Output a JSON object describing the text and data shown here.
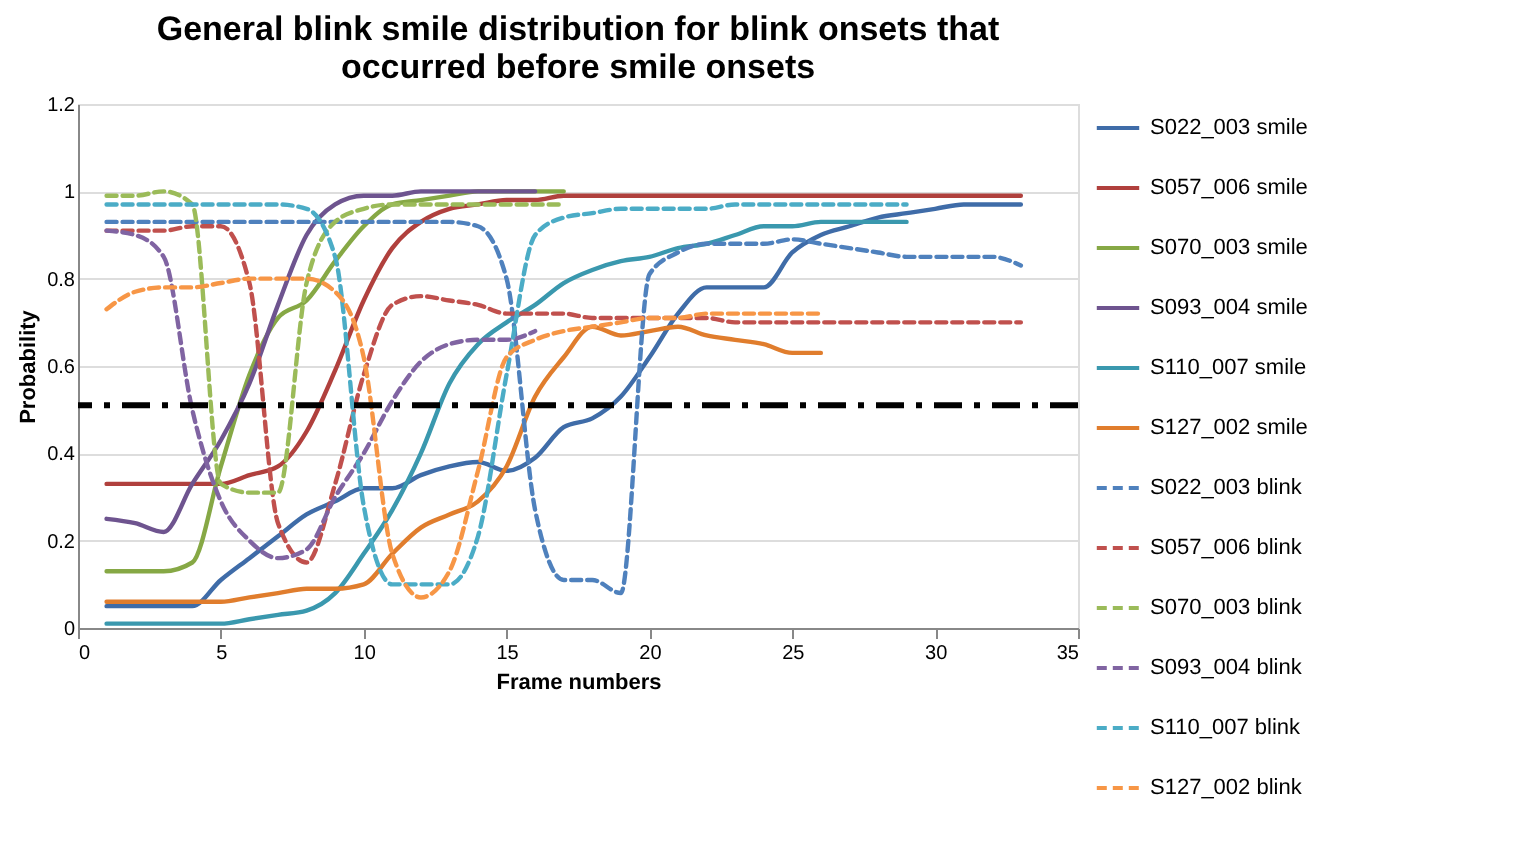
{
  "chart_data": {
    "type": "line",
    "title": "General blink smile distribution for blink onsets that occurred before smile onsets",
    "xlabel": "Frame numbers",
    "ylabel": "Probability",
    "x": [
      1,
      2,
      3,
      4,
      5,
      6,
      7,
      8,
      9,
      10,
      11,
      12,
      13,
      14,
      15,
      16,
      17,
      18,
      19,
      20,
      21,
      22,
      23,
      24,
      25,
      26,
      27,
      28,
      29,
      30,
      31,
      32,
      33
    ],
    "series": [
      {
        "name": "S022_003 smile",
        "color": "#3f6ca8",
        "line_style": "solid",
        "values": [
          0.05,
          0.05,
          0.05,
          0.05,
          0.11,
          0.16,
          0.21,
          0.26,
          0.29,
          0.32,
          0.32,
          0.35,
          0.37,
          0.38,
          0.36,
          0.39,
          0.46,
          0.48,
          0.53,
          0.62,
          0.72,
          0.78,
          0.78,
          0.78,
          0.86,
          0.9,
          0.92,
          0.94,
          0.95,
          0.96,
          0.97,
          0.97,
          0.97
        ]
      },
      {
        "name": "S057_006 smile",
        "color": "#b0403d",
        "line_style": "solid",
        "values": [
          0.33,
          0.33,
          0.33,
          0.33,
          0.33,
          0.35,
          0.37,
          0.45,
          0.59,
          0.75,
          0.87,
          0.93,
          0.96,
          0.97,
          0.98,
          0.98,
          0.99,
          0.99,
          0.99,
          0.99,
          0.99,
          0.99,
          0.99,
          0.99,
          0.99,
          0.99,
          0.99,
          0.99,
          0.99,
          0.99,
          0.99,
          0.99,
          0.99
        ]
      },
      {
        "name": "S070_003 smile",
        "color": "#86a845",
        "line_style": "solid",
        "values": [
          0.13,
          0.13,
          0.13,
          0.15,
          0.37,
          0.58,
          0.71,
          0.75,
          0.84,
          0.92,
          0.97,
          0.98,
          0.99,
          1,
          1,
          1,
          1,
          null,
          null,
          null,
          null,
          null,
          null,
          null,
          null,
          null,
          null,
          null,
          null,
          null,
          null,
          null,
          null
        ]
      },
      {
        "name": "S093_004 smile",
        "color": "#6e548f",
        "line_style": "solid",
        "values": [
          0.25,
          0.24,
          0.22,
          0.33,
          0.43,
          0.56,
          0.74,
          0.9,
          0.97,
          0.99,
          0.99,
          1,
          1,
          1,
          1,
          1,
          null,
          null,
          null,
          null,
          null,
          null,
          null,
          null,
          null,
          null,
          null,
          null,
          null,
          null,
          null,
          null,
          null
        ]
      },
      {
        "name": "S110_007 smile",
        "color": "#3a98ae",
        "line_style": "solid",
        "values": [
          0.01,
          0.01,
          0.01,
          0.01,
          0.01,
          0.02,
          0.03,
          0.04,
          0.08,
          0.17,
          0.27,
          0.4,
          0.56,
          0.65,
          0.7,
          0.74,
          0.79,
          0.82,
          0.84,
          0.85,
          0.87,
          0.88,
          0.9,
          0.92,
          0.92,
          0.93,
          0.93,
          0.93,
          0.93,
          null,
          null,
          null,
          null
        ]
      },
      {
        "name": "S127_002 smile",
        "color": "#e07d2d",
        "line_style": "solid",
        "values": [
          0.06,
          0.06,
          0.06,
          0.06,
          0.06,
          0.07,
          0.08,
          0.09,
          0.09,
          0.1,
          0.17,
          0.23,
          0.26,
          0.29,
          0.37,
          0.53,
          0.62,
          0.69,
          0.67,
          0.68,
          0.69,
          0.67,
          0.66,
          0.65,
          0.63,
          0.63,
          null,
          null,
          null,
          null,
          null,
          null,
          null
        ]
      },
      {
        "name": "S022_003 blink",
        "color": "#4f81bd",
        "line_style": "dashed",
        "values": [
          0.93,
          0.93,
          0.93,
          0.93,
          0.93,
          0.93,
          0.93,
          0.93,
          0.93,
          0.93,
          0.93,
          0.93,
          0.93,
          0.92,
          0.8,
          0.27,
          0.11,
          0.11,
          0.08,
          0.81,
          0.86,
          0.88,
          0.88,
          0.88,
          0.89,
          0.88,
          0.87,
          0.86,
          0.85,
          0.85,
          0.85,
          0.85,
          0.83
        ]
      },
      {
        "name": "S057_006 blink",
        "color": "#c0504d",
        "line_style": "dashed",
        "values": [
          0.91,
          0.91,
          0.91,
          0.92,
          0.92,
          0.79,
          0.24,
          0.15,
          0.33,
          0.58,
          0.74,
          0.76,
          0.75,
          0.74,
          0.72,
          0.72,
          0.72,
          0.71,
          0.71,
          0.71,
          0.71,
          0.71,
          0.7,
          0.7,
          0.7,
          0.7,
          0.7,
          0.7,
          0.7,
          0.7,
          0.7,
          0.7,
          0.7
        ]
      },
      {
        "name": "S070_003 blink",
        "color": "#9bbb59",
        "line_style": "dashed",
        "values": [
          0.99,
          0.99,
          1,
          0.97,
          0.33,
          0.31,
          0.31,
          0.79,
          0.93,
          0.96,
          0.97,
          0.97,
          0.97,
          0.97,
          0.97,
          0.97,
          0.97,
          null,
          null,
          null,
          null,
          null,
          null,
          null,
          null,
          null,
          null,
          null,
          null,
          null,
          null,
          null,
          null
        ]
      },
      {
        "name": "S093_004 blink",
        "color": "#8064a2",
        "line_style": "dashed",
        "values": [
          0.91,
          0.9,
          0.85,
          0.5,
          0.29,
          0.2,
          0.16,
          0.18,
          0.3,
          0.4,
          0.52,
          0.61,
          0.65,
          0.66,
          0.66,
          0.68,
          null,
          null,
          null,
          null,
          null,
          null,
          null,
          null,
          null,
          null,
          null,
          null,
          null,
          null,
          null,
          null,
          null
        ]
      },
      {
        "name": "S110_007 blink",
        "color": "#4bacc6",
        "line_style": "dashed",
        "values": [
          0.97,
          0.97,
          0.97,
          0.97,
          0.97,
          0.97,
          0.97,
          0.96,
          0.85,
          0.28,
          0.1,
          0.1,
          0.1,
          0.21,
          0.58,
          0.9,
          0.94,
          0.95,
          0.96,
          0.96,
          0.96,
          0.96,
          0.97,
          0.97,
          0.97,
          0.97,
          0.97,
          0.97,
          0.97,
          null,
          null,
          null,
          null
        ]
      },
      {
        "name": "S127_002 blink",
        "color": "#f79646",
        "line_style": "dashed",
        "values": [
          0.73,
          0.77,
          0.78,
          0.78,
          0.79,
          0.8,
          0.8,
          0.8,
          0.77,
          0.62,
          0.17,
          0.07,
          0.13,
          0.36,
          0.62,
          0.66,
          0.68,
          0.69,
          0.7,
          0.71,
          0.71,
          0.72,
          0.72,
          0.72,
          0.72,
          0.72,
          null,
          null,
          null,
          null,
          null,
          null,
          null
        ]
      }
    ],
    "ref_lines": [
      {
        "axis": "y",
        "value": 0.51,
        "color": "#000000",
        "line_style": "dashed"
      }
    ],
    "xlim": [
      0,
      35
    ],
    "xticks": [
      0,
      5,
      10,
      15,
      20,
      25,
      30,
      35
    ],
    "ylim": [
      0,
      1.2
    ],
    "yticks": [
      0,
      0.2,
      0.4,
      0.6,
      0.8,
      1,
      1.2
    ],
    "grid": "y",
    "legend": "right",
    "marker": "none"
  }
}
